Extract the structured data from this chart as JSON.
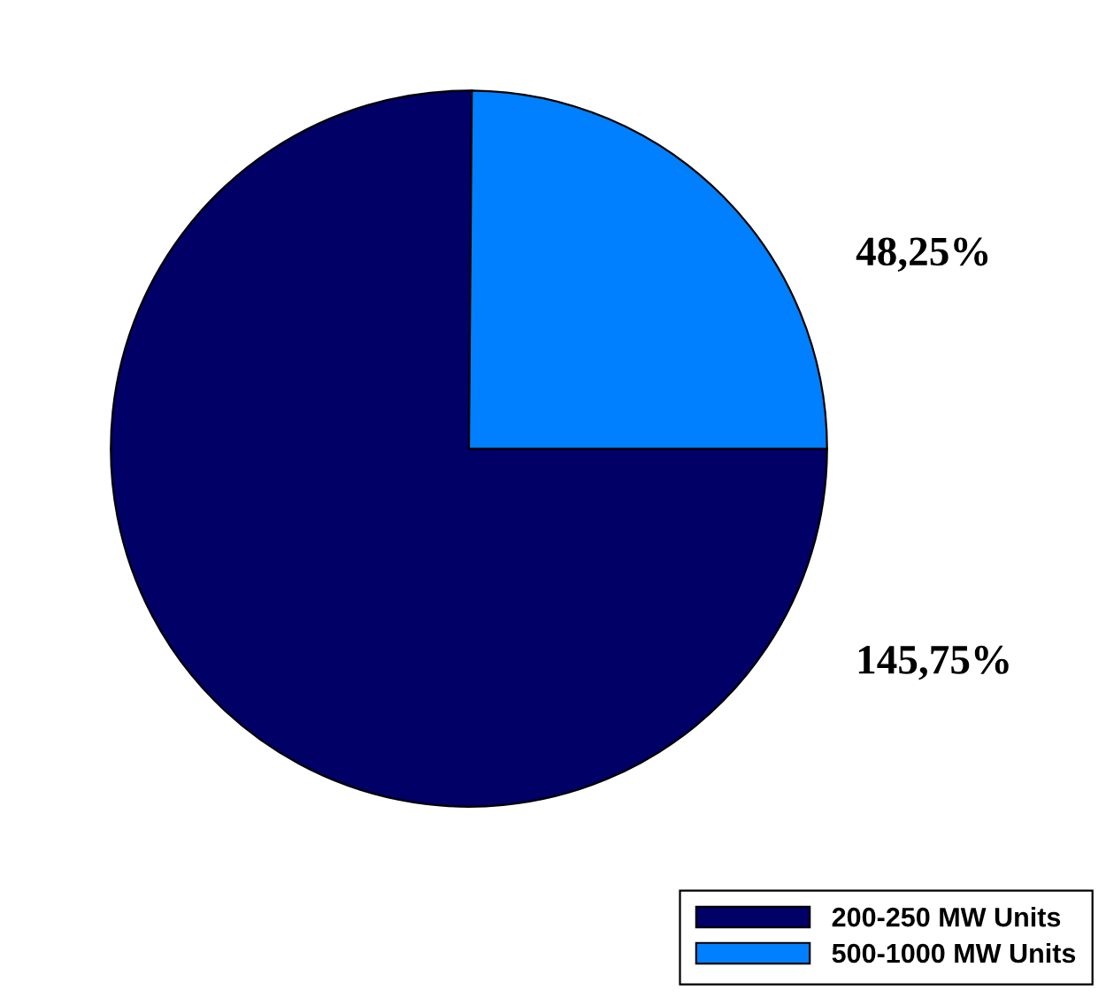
{
  "chart_data": {
    "type": "pie",
    "categories": [
      "200-250 MW Units",
      "500-1000 MW Units"
    ],
    "values": [
      145.75,
      48.25
    ],
    "colors": [
      "#000066",
      "#0080ff"
    ],
    "value_labels": [
      "145,75%",
      "48,25%"
    ],
    "legend": "bottom right"
  }
}
